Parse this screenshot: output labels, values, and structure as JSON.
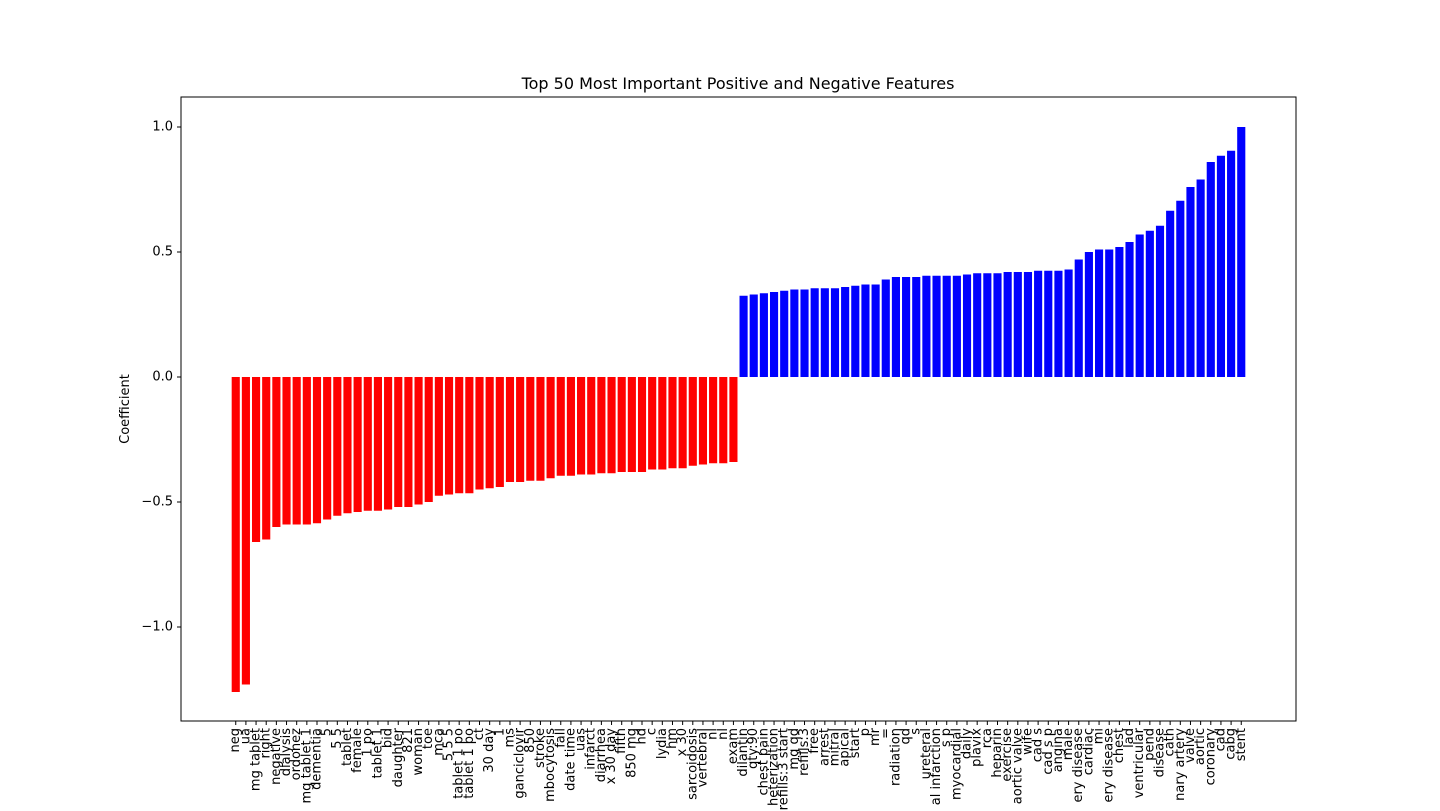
{
  "chart_data": {
    "type": "bar",
    "title": "Top 50 Most Important Positive and Negative Features",
    "ylabel": "Coefficient",
    "categories": [
      "neg",
      "ua",
      "mg tablet",
      "right",
      "negative",
      "dialysis",
      "ordonez",
      "mg tablet 1",
      "dementia",
      "5",
      "5 5",
      "tablet",
      "female",
      "1 po",
      "tablet 1",
      "bid",
      "daughter",
      "821",
      "woman",
      "toe",
      "mca",
      "5 5 5",
      "tablet 1 po",
      "tablet 1 po",
      "ct",
      "30 day",
      "1",
      "ms",
      "ganciclovir",
      "850",
      "stroke",
      "mbocytosis",
      "fall",
      "date time",
      "uas",
      "infarct",
      "diarrhea",
      "x 30 day",
      "fifth",
      "850 mg",
      "hd",
      "c",
      "lydia",
      "hm",
      "x 30",
      "sarcoidosis",
      "vertebral",
      "nl",
      "nl",
      "exam",
      "dilantin",
      "qty:90",
      "chest pain",
      "heterization",
      "refills:3 start",
      "mg qd",
      "refills:3",
      "free",
      "arrest",
      "mitral",
      "apical",
      "start",
      "p",
      "mr",
      "=",
      "radiation",
      "qd",
      "s",
      "ureteral",
      "al infarction",
      "s p",
      "myocardial",
      "daily",
      "plavix",
      "rca",
      "heparin",
      "exercise",
      "aortic valve",
      "wife",
      "cad s",
      "cad s p",
      "angina",
      "male",
      "ery disease",
      "cardiac",
      "mi",
      "ery disease",
      "chest",
      "lad",
      "ventricular",
      "pend",
      "disease",
      "cath",
      "nary artery",
      "valve",
      "aortic",
      "coronary",
      "cad",
      "cabg",
      "stent"
    ],
    "values": [
      -1.26,
      -1.23,
      -0.66,
      -0.65,
      -0.6,
      -0.59,
      -0.59,
      -0.59,
      -0.585,
      -0.57,
      -0.555,
      -0.545,
      -0.54,
      -0.535,
      -0.535,
      -0.53,
      -0.52,
      -0.52,
      -0.51,
      -0.5,
      -0.475,
      -0.47,
      -0.465,
      -0.465,
      -0.45,
      -0.445,
      -0.44,
      -0.42,
      -0.42,
      -0.415,
      -0.415,
      -0.405,
      -0.395,
      -0.395,
      -0.39,
      -0.39,
      -0.385,
      -0.385,
      -0.38,
      -0.38,
      -0.38,
      -0.37,
      -0.37,
      -0.365,
      -0.365,
      -0.355,
      -0.35,
      -0.345,
      -0.345,
      -0.34,
      0.325,
      0.33,
      0.335,
      0.34,
      0.345,
      0.35,
      0.35,
      0.355,
      0.355,
      0.355,
      0.36,
      0.365,
      0.37,
      0.37,
      0.39,
      0.4,
      0.4,
      0.4,
      0.405,
      0.405,
      0.405,
      0.405,
      0.41,
      0.415,
      0.415,
      0.415,
      0.42,
      0.42,
      0.42,
      0.425,
      0.425,
      0.425,
      0.43,
      0.47,
      0.5,
      0.51,
      0.51,
      0.52,
      0.54,
      0.57,
      0.585,
      0.605,
      0.665,
      0.705,
      0.76,
      0.79,
      0.86,
      0.885,
      0.905,
      1.0
    ],
    "positive_color": "#0000ff",
    "negative_color": "#ff0000",
    "ylim": [
      -1.376,
      1.12
    ],
    "yticks": [
      {
        "value": -1,
        "label": "−1.0"
      },
      {
        "value": -0.5,
        "label": "−0.5"
      },
      {
        "value": 0,
        "label": "0.0"
      },
      {
        "value": 0.5,
        "label": "0.5"
      },
      {
        "value": 1,
        "label": "1.0"
      }
    ],
    "grid": false
  }
}
